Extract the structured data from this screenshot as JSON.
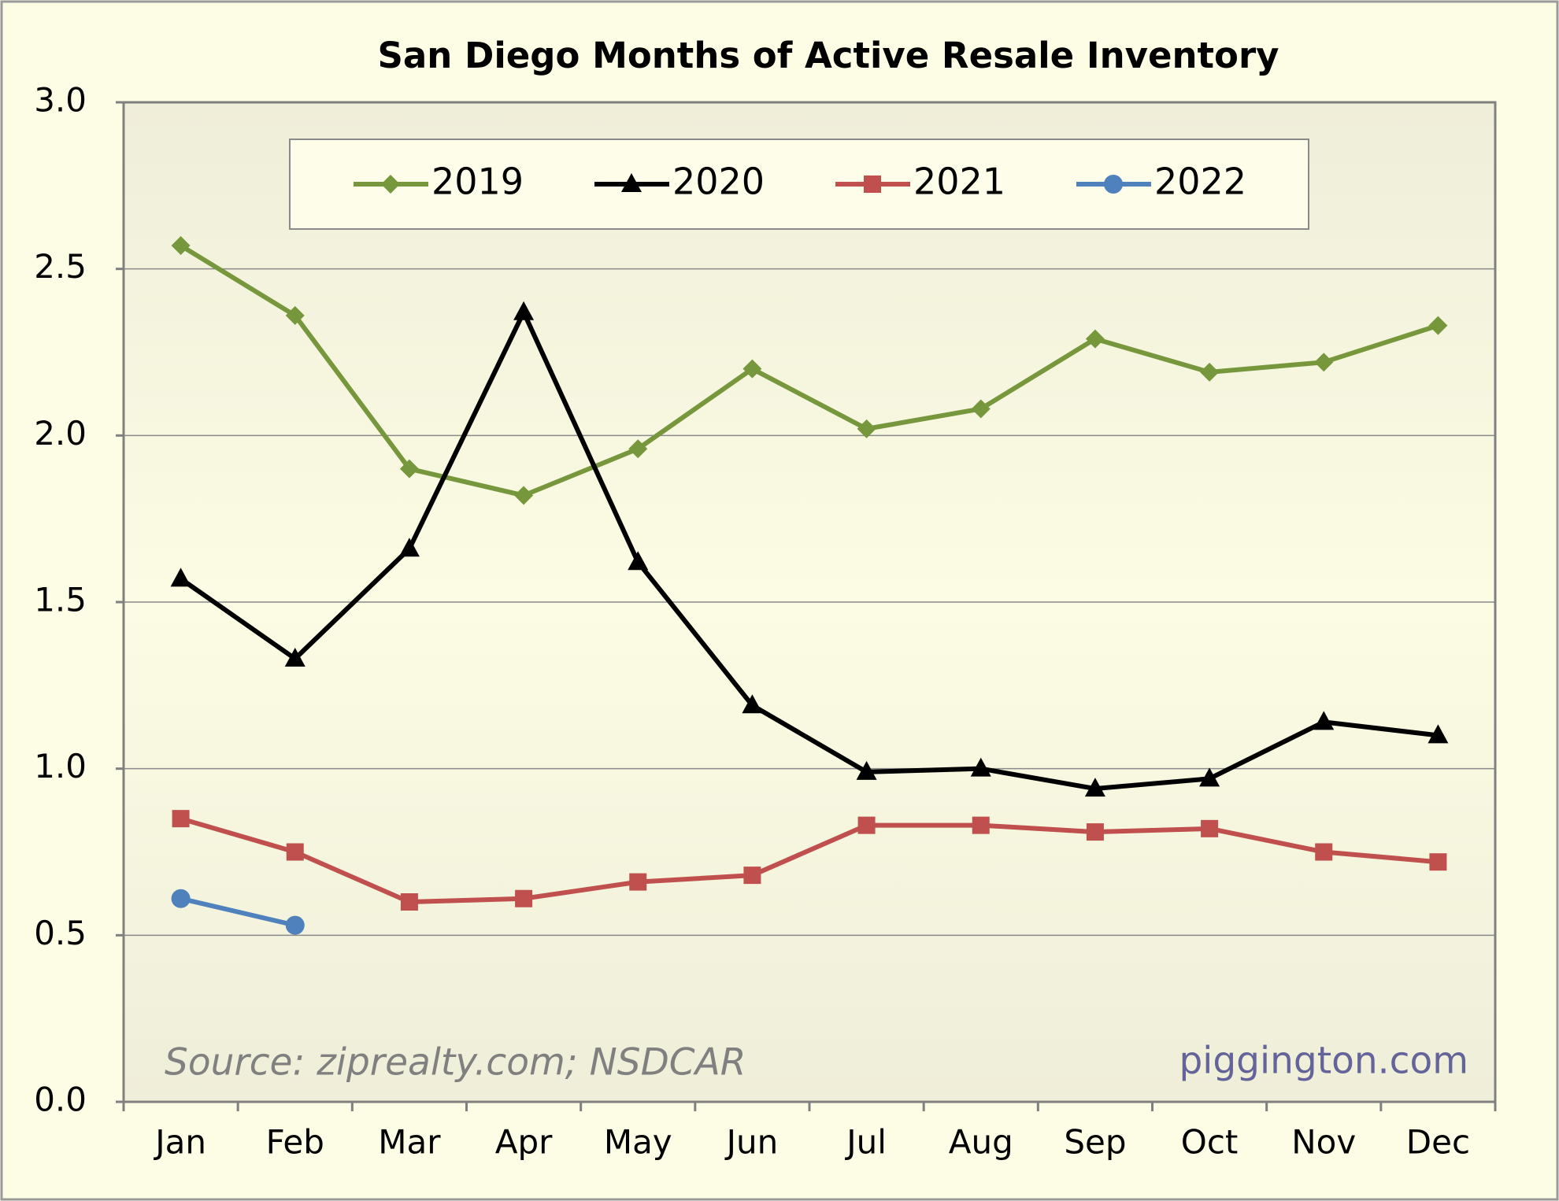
{
  "chart_data": {
    "type": "line",
    "title": "San Diego Months of Active Resale Inventory",
    "categories": [
      "Jan",
      "Feb",
      "Mar",
      "Apr",
      "May",
      "Jun",
      "Jul",
      "Aug",
      "Sep",
      "Oct",
      "Nov",
      "Dec"
    ],
    "series": [
      {
        "name": "2019",
        "color": "#77973d",
        "marker": "diamond",
        "values": [
          2.57,
          2.36,
          1.9,
          1.82,
          1.96,
          2.2,
          2.02,
          2.08,
          2.29,
          2.19,
          2.22,
          2.33
        ]
      },
      {
        "name": "2020",
        "color": "#000000",
        "marker": "triangle",
        "values": [
          1.57,
          1.33,
          1.66,
          2.37,
          1.62,
          1.19,
          0.99,
          1.0,
          0.94,
          0.97,
          1.14,
          1.1
        ]
      },
      {
        "name": "2021",
        "color": "#c0504d",
        "marker": "square",
        "values": [
          0.85,
          0.75,
          0.6,
          0.61,
          0.66,
          0.68,
          0.83,
          0.83,
          0.81,
          0.82,
          0.75,
          0.72
        ]
      },
      {
        "name": "2022",
        "color": "#4f81bd",
        "marker": "circle",
        "values": [
          0.61,
          0.53,
          null,
          null,
          null,
          null,
          null,
          null,
          null,
          null,
          null,
          null
        ]
      }
    ],
    "ylim": [
      0,
      3
    ],
    "yticks": [
      {
        "value": 0,
        "label": "0.0"
      },
      {
        "value": 0.5,
        "label": "0.5"
      },
      {
        "value": 1,
        "label": "1.0"
      },
      {
        "value": 1.5,
        "label": "1.5"
      },
      {
        "value": 2,
        "label": "2.0"
      },
      {
        "value": 2.5,
        "label": "2.5"
      },
      {
        "value": 3,
        "label": "3.0"
      }
    ],
    "grid": true,
    "legend": "top",
    "annotations": [
      "Source: ziprealty.com; NSDCAR",
      "piggington.com"
    ]
  }
}
